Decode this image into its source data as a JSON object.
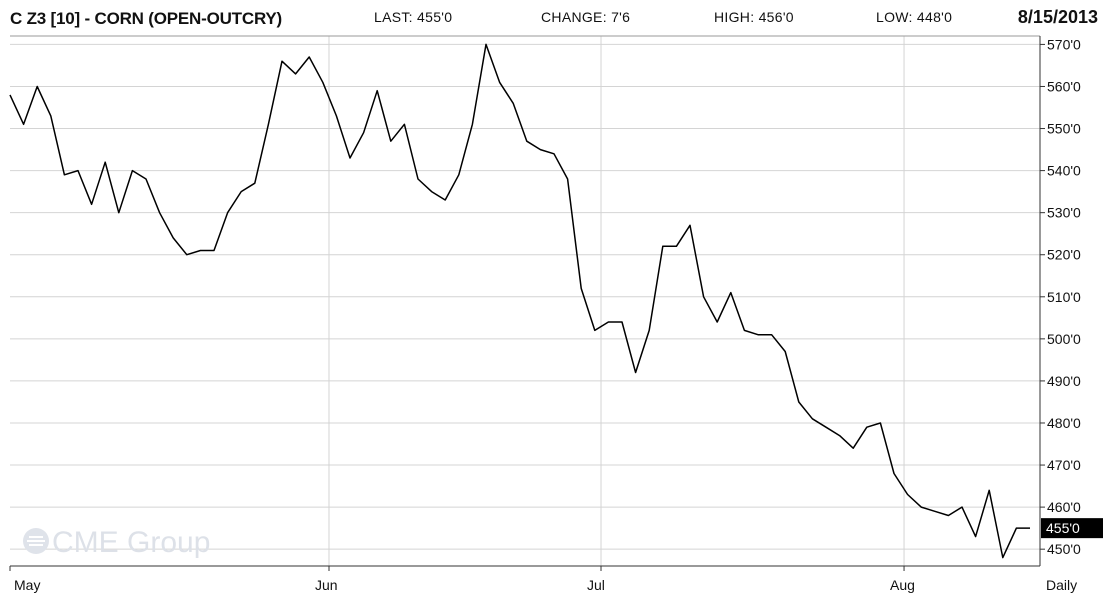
{
  "header": {
    "title": "C Z3 [10] - CORN (OPEN-OUTCRY)",
    "last": "LAST: 455'0",
    "change": "CHANGE: 7'6",
    "high": "HIGH: 456'0",
    "low": "LOW: 448'0",
    "date": "8/15/2013"
  },
  "watermark": "CME Group",
  "chart_data": {
    "type": "line",
    "title": "C Z3 [10] - CORN (OPEN-OUTCRY)",
    "period_label": "Daily",
    "x_labels": [
      "May",
      "Jun",
      "Jul",
      "Aug"
    ],
    "y_ticks": [
      "450'0",
      "460'0",
      "470'0",
      "480'0",
      "490'0",
      "500'0",
      "510'0",
      "520'0",
      "530'0",
      "540'0",
      "550'0",
      "560'0",
      "570'0"
    ],
    "y_tick_values": [
      450,
      460,
      470,
      480,
      490,
      500,
      510,
      520,
      530,
      540,
      550,
      560,
      570
    ],
    "ylim": [
      446,
      572
    ],
    "last_value_label": "455'0",
    "last_value": 455,
    "grid": true,
    "series": [
      {
        "values": [
          558,
          551,
          560,
          553,
          539,
          540,
          532,
          542,
          530,
          540,
          538,
          530,
          524,
          520,
          521,
          521,
          530,
          535,
          537,
          551,
          566,
          563,
          567,
          561,
          553,
          543,
          549,
          559,
          547,
          551,
          538,
          535,
          533,
          539,
          551,
          570,
          561,
          556,
          547,
          545,
          544,
          538,
          512,
          502,
          504,
          504,
          492,
          502,
          522,
          522,
          527,
          510,
          504,
          511,
          502,
          501,
          501,
          497,
          485,
          481,
          479,
          477,
          474,
          479,
          480,
          468,
          463,
          460,
          459,
          458,
          460,
          453,
          464,
          448,
          455,
          455
        ]
      }
    ]
  }
}
